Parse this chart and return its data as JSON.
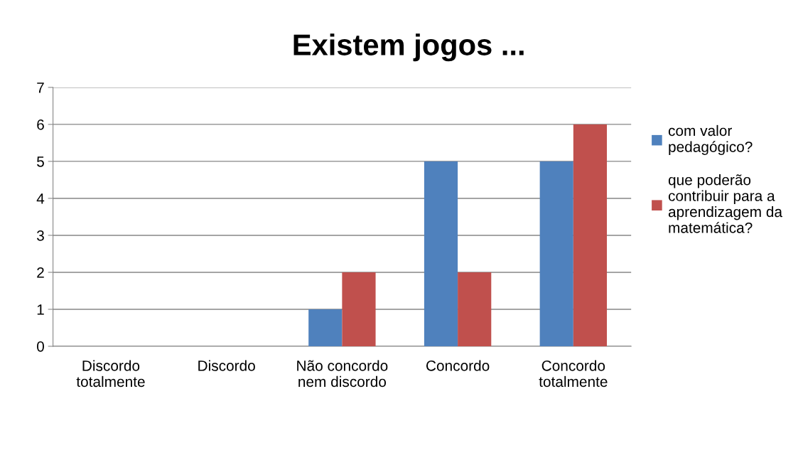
{
  "chart_data": {
    "type": "bar",
    "title": "Existem jogos ...",
    "categories": [
      "Discordo\ntotalmente",
      "Discordo",
      "Não concordo\nnem discordo",
      "Concordo",
      "Concordo\ntotalmente"
    ],
    "series": [
      {
        "name": "com valor\npedagógico?",
        "color": "#4f81bd",
        "values": [
          0,
          0,
          1,
          5,
          5
        ]
      },
      {
        "name": "que poderão\ncontribuir para a\naprendizagem da\nmatemática?",
        "color": "#c0504d",
        "values": [
          0,
          0,
          2,
          2,
          6
        ]
      }
    ],
    "ylim": [
      0,
      7
    ],
    "yticks": [
      0,
      1,
      2,
      3,
      4,
      5,
      6,
      7
    ],
    "grid": "y",
    "legend": "right"
  }
}
